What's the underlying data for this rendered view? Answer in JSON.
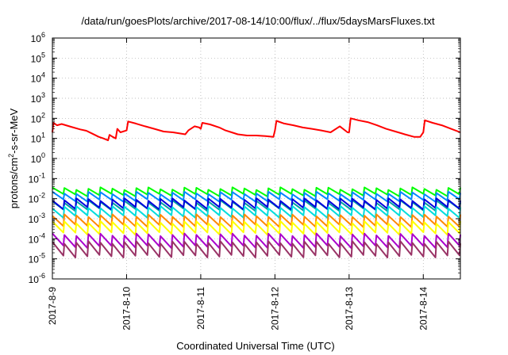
{
  "chart_data": {
    "type": "line",
    "title": "/data/run/goesPlots/archive/2017-08-14/10:00/flux/../flux/5daysMarsFluxes.txt",
    "xlabel": "Coordinated Universal Time (UTC)",
    "ylabel": {
      "base": "protons/cm",
      "sup": "2",
      "rest": "-s-sr-MeV"
    },
    "yscale": "log",
    "ylim": [
      1e-06,
      1000000.0
    ],
    "xlim": [
      "2017-08-09T00:00",
      "2017-08-14T12:00"
    ],
    "x_tick_labels": [
      "2017-8-9",
      "2017-8-10",
      "2017-8-11",
      "2017-8-12",
      "2017-8-13",
      "2017-8-14"
    ],
    "y_ticks": [
      {
        "base": "10",
        "exp": "-6"
      },
      {
        "base": "10",
        "exp": "-5"
      },
      {
        "base": "10",
        "exp": "-4"
      },
      {
        "base": "10",
        "exp": "-3"
      },
      {
        "base": "10",
        "exp": "-2"
      },
      {
        "base": "10",
        "exp": "-1"
      },
      {
        "base": "10",
        "exp": "0"
      },
      {
        "base": "10",
        "exp": "1"
      },
      {
        "base": "10",
        "exp": "2"
      },
      {
        "base": "10",
        "exp": "3"
      },
      {
        "base": "10",
        "exp": "4"
      },
      {
        "base": "10",
        "exp": "5"
      },
      {
        "base": "10",
        "exp": "6"
      }
    ],
    "grid": true,
    "series": [
      {
        "color": "#ff0000",
        "points": [
          [
            "2017-08-09T00:00",
            20
          ],
          [
            "2017-08-09T00:20",
            60
          ],
          [
            "2017-08-09T01:30",
            45
          ],
          [
            "2017-08-09T03:00",
            52
          ],
          [
            "2017-08-09T06:00",
            38
          ],
          [
            "2017-08-09T09:00",
            28
          ],
          [
            "2017-08-09T11:00",
            24
          ],
          [
            "2017-08-09T13:00",
            17
          ],
          [
            "2017-08-09T15:00",
            12
          ],
          [
            "2017-08-09T16:30",
            10
          ],
          [
            "2017-08-09T18:00",
            8
          ],
          [
            "2017-08-09T18:30",
            15
          ],
          [
            "2017-08-09T19:30",
            12
          ],
          [
            "2017-08-09T20:30",
            10
          ],
          [
            "2017-08-09T21:00",
            30
          ],
          [
            "2017-08-09T22:00",
            20
          ],
          [
            "2017-08-10T00:00",
            25
          ],
          [
            "2017-08-10T00:30",
            70
          ],
          [
            "2017-08-10T03:00",
            55
          ],
          [
            "2017-08-10T06:00",
            40
          ],
          [
            "2017-08-10T09:00",
            30
          ],
          [
            "2017-08-10T12:00",
            22
          ],
          [
            "2017-08-10T15:00",
            20
          ],
          [
            "2017-08-10T17:00",
            18
          ],
          [
            "2017-08-10T19:00",
            16
          ],
          [
            "2017-08-10T20:00",
            25
          ],
          [
            "2017-08-10T22:00",
            40
          ],
          [
            "2017-08-10T23:30",
            35
          ],
          [
            "2017-08-11T00:00",
            30
          ],
          [
            "2017-08-11T00:30",
            60
          ],
          [
            "2017-08-11T03:00",
            50
          ],
          [
            "2017-08-11T06:00",
            35
          ],
          [
            "2017-08-11T08:00",
            25
          ],
          [
            "2017-08-11T10:00",
            20
          ],
          [
            "2017-08-11T12:00",
            16
          ],
          [
            "2017-08-11T15:00",
            14
          ],
          [
            "2017-08-11T18:00",
            14
          ],
          [
            "2017-08-11T21:00",
            13
          ],
          [
            "2017-08-11T23:30",
            12
          ],
          [
            "2017-08-12T00:00",
            25
          ],
          [
            "2017-08-12T00:30",
            75
          ],
          [
            "2017-08-12T03:00",
            55
          ],
          [
            "2017-08-12T06:00",
            45
          ],
          [
            "2017-08-12T09:00",
            35
          ],
          [
            "2017-08-12T12:00",
            30
          ],
          [
            "2017-08-12T15:00",
            25
          ],
          [
            "2017-08-12T18:00",
            20
          ],
          [
            "2017-08-12T21:00",
            40
          ],
          [
            "2017-08-12T23:30",
            20
          ],
          [
            "2017-08-13T00:00",
            20
          ],
          [
            "2017-08-13T00:30",
            100
          ],
          [
            "2017-08-13T03:00",
            80
          ],
          [
            "2017-08-13T06:00",
            65
          ],
          [
            "2017-08-13T09:00",
            45
          ],
          [
            "2017-08-13T12:00",
            30
          ],
          [
            "2017-08-13T15:00",
            22
          ],
          [
            "2017-08-13T18:00",
            16
          ],
          [
            "2017-08-13T21:00",
            12
          ],
          [
            "2017-08-13T23:00",
            12
          ],
          [
            "2017-08-14T00:00",
            20
          ],
          [
            "2017-08-14T00:30",
            80
          ],
          [
            "2017-08-14T03:00",
            60
          ],
          [
            "2017-08-14T06:00",
            45
          ],
          [
            "2017-08-14T09:00",
            30
          ],
          [
            "2017-08-14T12:00",
            20
          ]
        ]
      },
      {
        "color": "#00ff00",
        "level": 0.022,
        "amp": 1.45
      },
      {
        "color": "#0088ff",
        "level": 0.0125,
        "amp": 1.55
      },
      {
        "color": "#00a0a0",
        "level": 0.0045,
        "amp": 1.6
      },
      {
        "color": "#0000dd",
        "level": 0.0055,
        "amp": 1.65
      },
      {
        "color": "#00dddd",
        "level": 0.0022,
        "amp": 1.7
      },
      {
        "color": "#ff8800",
        "level": 0.0008,
        "amp": 1.8
      },
      {
        "color": "#ffff00",
        "level": 0.00035,
        "amp": 1.9
      },
      {
        "color": "#aa00cc",
        "level": 8e-05,
        "amp": 2.0
      },
      {
        "color": "#993366",
        "level": 3e-05,
        "amp": 2.2
      }
    ]
  }
}
